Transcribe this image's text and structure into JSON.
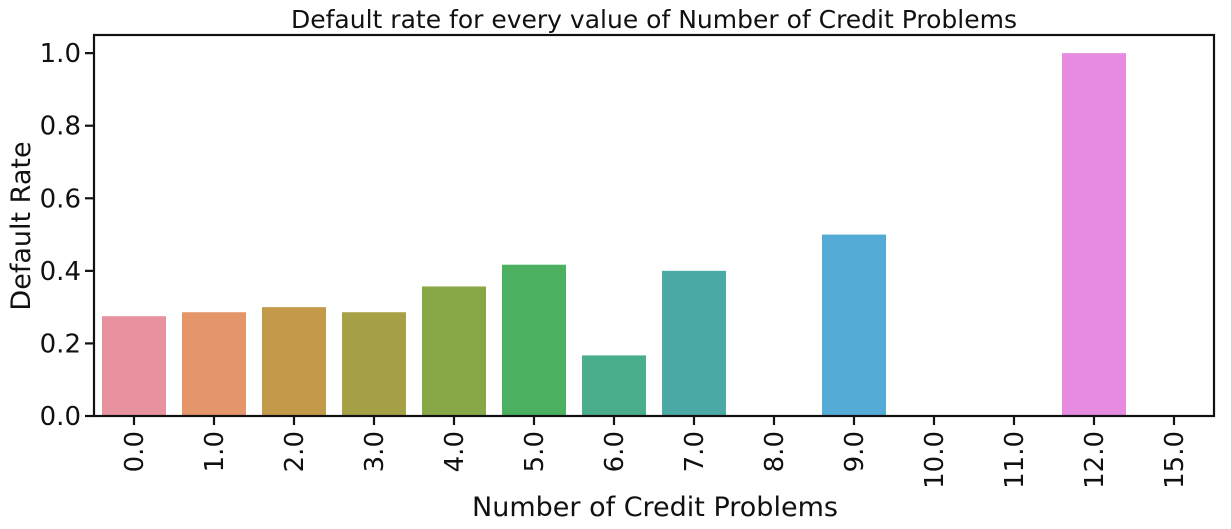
{
  "chart_data": {
    "type": "bar",
    "title": "Default rate for every value of Number of Credit Problems",
    "xlabel": "Number of Credit Problems",
    "ylabel": "Default Rate",
    "categories": [
      "0.0",
      "1.0",
      "2.0",
      "3.0",
      "4.0",
      "5.0",
      "6.0",
      "7.0",
      "8.0",
      "9.0",
      "10.0",
      "11.0",
      "12.0",
      "15.0"
    ],
    "values": [
      0.275,
      0.286,
      0.3,
      0.286,
      0.357,
      0.417,
      0.167,
      0.4,
      0.0,
      0.5,
      0.0,
      0.0,
      1.0,
      0.0
    ],
    "colors": [
      "#e8929f",
      "#e4966a",
      "#c29a49",
      "#a6a047",
      "#88a848",
      "#4bb05f",
      "#4aad8c",
      "#4ba9a6",
      "#4aa9bc",
      "#54abd6",
      "#8fa4e6",
      "#bd90e8",
      "#e78be1",
      "#e98ec0"
    ],
    "yticks": [
      "0.0",
      "0.2",
      "0.4",
      "0.6",
      "0.8",
      "1.0"
    ],
    "ylim": [
      0,
      1.05
    ],
    "grid": false,
    "legend": "none"
  }
}
